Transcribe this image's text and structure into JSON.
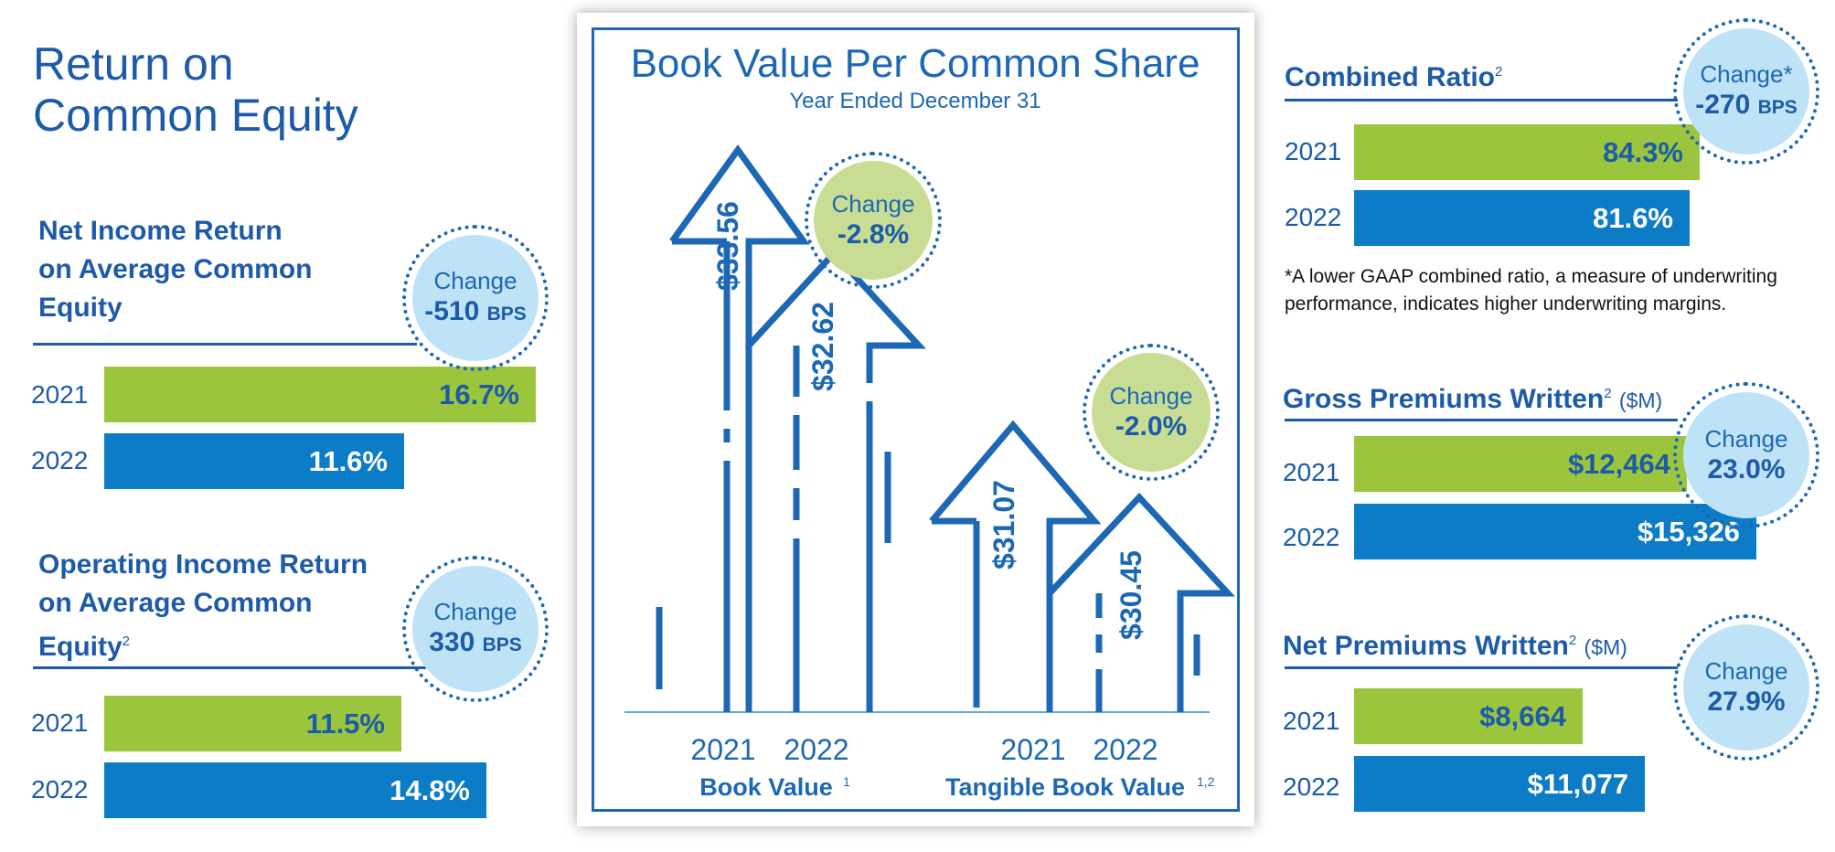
{
  "colors": {
    "primary": "#1d5ba8",
    "bar_2021": "#9bc53d",
    "bar_2022": "#0c7cc7",
    "badge_fill": "#bfe3f6",
    "badge_fill_alt": "#c8dd93"
  },
  "left": {
    "title_line1": "Return on",
    "title_line2": "Common Equity",
    "net_income": {
      "heading1": "Net Income Return",
      "heading2": "on Average Common",
      "heading3": "Equity",
      "change_label": "Change",
      "change_value": "-510",
      "change_unit": "BPS",
      "rows": [
        {
          "year": "2021",
          "value": "16.7%"
        },
        {
          "year": "2022",
          "value": "11.6%"
        }
      ]
    },
    "operating_income": {
      "heading1": "Operating Income Return",
      "heading2": "on Average Common",
      "heading3": "Equity",
      "heading3_sup": "2",
      "change_label": "Change",
      "change_value": "330",
      "change_unit": "BPS",
      "rows": [
        {
          "year": "2021",
          "value": "11.5%"
        },
        {
          "year": "2022",
          "value": "14.8%"
        }
      ]
    }
  },
  "center": {
    "title": "Book Value Per Common Share",
    "subtitle": "Year Ended December 31",
    "book_value": {
      "label": "Book Value",
      "label_sup": "1",
      "years": [
        "2021",
        "2022"
      ],
      "values": [
        "$33.56",
        "$32.62"
      ],
      "change_label": "Change",
      "change_value": "-2.8%"
    },
    "tangible_book_value": {
      "label": "Tangible Book Value",
      "label_sup": "1,2",
      "years": [
        "2021",
        "2022"
      ],
      "values": [
        "$31.07",
        "$30.45"
      ],
      "change_label": "Change",
      "change_value": "-2.0%"
    }
  },
  "right": {
    "combined_ratio": {
      "heading": "Combined Ratio",
      "heading_sup": "2",
      "change_label": "Change*",
      "change_value": "-270",
      "change_unit": "BPS",
      "rows": [
        {
          "year": "2021",
          "value": "84.3%"
        },
        {
          "year": "2022",
          "value": "81.6%"
        }
      ],
      "note_line1": "*A lower GAAP combined ratio, a measure of underwriting",
      "note_line2": "performance, indicates higher underwriting margins."
    },
    "gross_premiums": {
      "heading": "Gross Premiums Written",
      "heading_sup": "2",
      "unit": "($M)",
      "change_label": "Change",
      "change_value": "23.0%",
      "rows": [
        {
          "year": "2021",
          "value": "$12,464"
        },
        {
          "year": "2022",
          "value": "$15,326"
        }
      ]
    },
    "net_premiums": {
      "heading": "Net Premiums Written",
      "heading_sup": "2",
      "unit": "($M)",
      "change_label": "Change",
      "change_value": "27.9%",
      "rows": [
        {
          "year": "2021",
          "value": "$8,664"
        },
        {
          "year": "2022",
          "value": "$11,077"
        }
      ]
    }
  },
  "chart_data": [
    {
      "type": "bar",
      "title": "Net Income Return on Average Common Equity",
      "categories": [
        "2021",
        "2022"
      ],
      "values": [
        16.7,
        11.6
      ],
      "unit": "%"
    },
    {
      "type": "bar",
      "title": "Operating Income Return on Average Common Equity",
      "categories": [
        "2021",
        "2022"
      ],
      "values": [
        11.5,
        14.8
      ],
      "unit": "%"
    },
    {
      "type": "bar",
      "title": "Book Value Per Common Share",
      "subtitle": "Year Ended December 31",
      "categories": [
        "2021",
        "2022"
      ],
      "series": [
        {
          "name": "Book Value",
          "values": [
            33.56,
            32.62
          ]
        },
        {
          "name": "Tangible Book Value",
          "values": [
            31.07,
            30.45
          ]
        }
      ]
    },
    {
      "type": "bar",
      "title": "Combined Ratio",
      "categories": [
        "2021",
        "2022"
      ],
      "values": [
        84.3,
        81.6
      ],
      "unit": "%"
    },
    {
      "type": "bar",
      "title": "Gross Premiums Written",
      "categories": [
        "2021",
        "2022"
      ],
      "values": [
        12464,
        15326
      ],
      "unit": "$M"
    },
    {
      "type": "bar",
      "title": "Net Premiums Written",
      "categories": [
        "2021",
        "2022"
      ],
      "values": [
        8664,
        11077
      ],
      "unit": "$M"
    }
  ]
}
